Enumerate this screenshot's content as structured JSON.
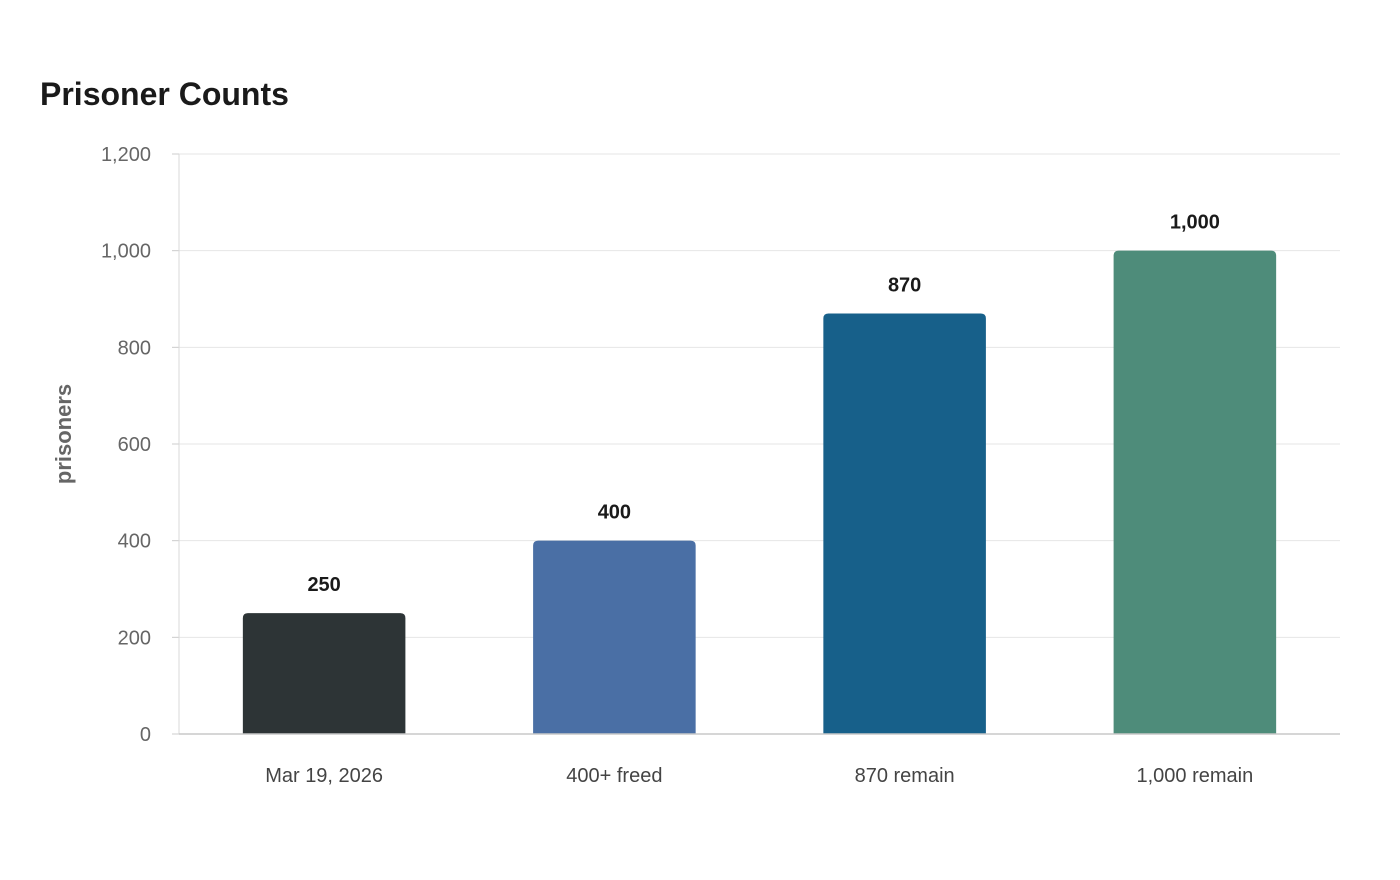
{
  "chart_data": {
    "type": "bar",
    "title": "Prisoner Counts",
    "xlabel": "",
    "ylabel": "prisoners",
    "categories": [
      "Mar 19, 2026",
      "400+ freed",
      "870 remain",
      "1,000 remain"
    ],
    "values": [
      250,
      400,
      870,
      1000
    ],
    "data_labels": [
      "250",
      "400",
      "870",
      "1,000"
    ],
    "bar_colors": [
      "#2d3436",
      "#4a6fa5",
      "#17608a",
      "#4e8c7a"
    ],
    "ylim": [
      0,
      1200
    ],
    "yticks": [
      0,
      200,
      400,
      600,
      800,
      1000,
      1200
    ],
    "ytick_labels": [
      "0",
      "200",
      "400",
      "600",
      "800",
      "1,000",
      "1,200"
    ],
    "grid": true,
    "legend": "none"
  }
}
